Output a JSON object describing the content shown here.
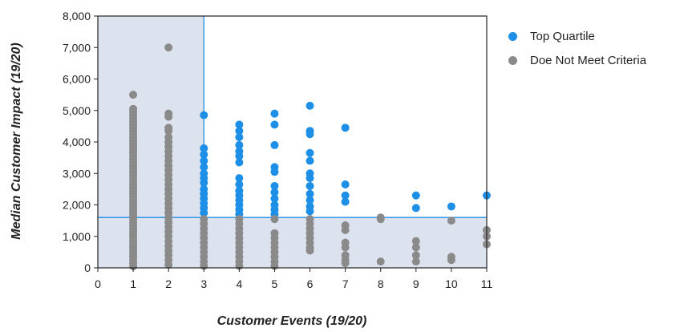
{
  "chart_data": {
    "type": "scatter",
    "xlabel": "Customer Events (19/20)",
    "ylabel": "Median Customer Impact (19/20)",
    "xlim": [
      0,
      11
    ],
    "ylim": [
      0,
      8000
    ],
    "x_ticks": [
      "0",
      "1",
      "2",
      "3",
      "4",
      "5",
      "6",
      "7",
      "8",
      "9",
      "10",
      "11"
    ],
    "y_ticks": [
      "0",
      "1,000",
      "2,000",
      "3,000",
      "4,000",
      "5,000",
      "6,000",
      "7,000",
      "8,000"
    ],
    "grid": false,
    "legend_position": "top-right",
    "threshold_lines": {
      "x": 3,
      "y": 1600
    },
    "colors": {
      "top_quartile": "#1e8fe6",
      "not_meet": "#8a8a8a",
      "shaded_region": "#dde3ee",
      "threshold_line": "#1e8fe6"
    },
    "series": [
      {
        "name": "Top Quartile",
        "points": [
          [
            3,
            4850
          ],
          [
            3,
            3800
          ],
          [
            3,
            3600
          ],
          [
            3,
            3400
          ],
          [
            3,
            3200
          ],
          [
            3,
            3000
          ],
          [
            3,
            2850
          ],
          [
            3,
            2700
          ],
          [
            3,
            2500
          ],
          [
            3,
            2350
          ],
          [
            3,
            2200
          ],
          [
            3,
            2050
          ],
          [
            3,
            1900
          ],
          [
            3,
            1750
          ],
          [
            4,
            4550
          ],
          [
            4,
            4350
          ],
          [
            4,
            4150
          ],
          [
            4,
            3900
          ],
          [
            4,
            3700
          ],
          [
            4,
            3550
          ],
          [
            4,
            3350
          ],
          [
            4,
            2850
          ],
          [
            4,
            2650
          ],
          [
            4,
            2450
          ],
          [
            4,
            2300
          ],
          [
            4,
            2150
          ],
          [
            4,
            2000
          ],
          [
            4,
            1850
          ],
          [
            4,
            1700
          ],
          [
            5,
            4900
          ],
          [
            5,
            4550
          ],
          [
            5,
            3900
          ],
          [
            5,
            3200
          ],
          [
            5,
            3050
          ],
          [
            5,
            2600
          ],
          [
            5,
            2400
          ],
          [
            5,
            2200
          ],
          [
            5,
            2000
          ],
          [
            5,
            1850
          ],
          [
            5,
            1700
          ],
          [
            6,
            5150
          ],
          [
            6,
            4350
          ],
          [
            6,
            4250
          ],
          [
            6,
            3650
          ],
          [
            6,
            3400
          ],
          [
            6,
            3000
          ],
          [
            6,
            2850
          ],
          [
            6,
            2600
          ],
          [
            6,
            2350
          ],
          [
            6,
            2150
          ],
          [
            6,
            1950
          ],
          [
            6,
            1800
          ],
          [
            7,
            4450
          ],
          [
            7,
            2650
          ],
          [
            7,
            2300
          ],
          [
            7,
            2100
          ],
          [
            9,
            2300
          ],
          [
            9,
            1900
          ],
          [
            10,
            1950
          ],
          [
            11,
            2300
          ]
        ]
      },
      {
        "name": "Doe Not Meet Criteria",
        "points": [
          [
            1,
            5500
          ],
          [
            1,
            5050
          ],
          [
            1,
            4950
          ],
          [
            1,
            4850
          ],
          [
            1,
            4750
          ],
          [
            1,
            4650
          ],
          [
            1,
            4550
          ],
          [
            1,
            4450
          ],
          [
            1,
            4350
          ],
          [
            1,
            4250
          ],
          [
            1,
            4150
          ],
          [
            1,
            4050
          ],
          [
            1,
            3950
          ],
          [
            1,
            3850
          ],
          [
            1,
            3750
          ],
          [
            1,
            3650
          ],
          [
            1,
            3550
          ],
          [
            1,
            3450
          ],
          [
            1,
            3350
          ],
          [
            1,
            3250
          ],
          [
            1,
            3150
          ],
          [
            1,
            3050
          ],
          [
            1,
            2950
          ],
          [
            1,
            2850
          ],
          [
            1,
            2750
          ],
          [
            1,
            2650
          ],
          [
            1,
            2550
          ],
          [
            1,
            2450
          ],
          [
            1,
            2350
          ],
          [
            1,
            2250
          ],
          [
            1,
            2150
          ],
          [
            1,
            2050
          ],
          [
            1,
            1950
          ],
          [
            1,
            1850
          ],
          [
            1,
            1750
          ],
          [
            1,
            1650
          ],
          [
            1,
            1550
          ],
          [
            1,
            1450
          ],
          [
            1,
            1350
          ],
          [
            1,
            1250
          ],
          [
            1,
            1150
          ],
          [
            1,
            1050
          ],
          [
            1,
            950
          ],
          [
            1,
            850
          ],
          [
            1,
            750
          ],
          [
            1,
            650
          ],
          [
            1,
            550
          ],
          [
            1,
            450
          ],
          [
            1,
            350
          ],
          [
            1,
            250
          ],
          [
            1,
            150
          ],
          [
            1,
            50
          ],
          [
            2,
            7000
          ],
          [
            2,
            4900
          ],
          [
            2,
            4800
          ],
          [
            2,
            4450
          ],
          [
            2,
            4350
          ],
          [
            2,
            4150
          ],
          [
            2,
            4000
          ],
          [
            2,
            3850
          ],
          [
            2,
            3700
          ],
          [
            2,
            3550
          ],
          [
            2,
            3400
          ],
          [
            2,
            3250
          ],
          [
            2,
            3100
          ],
          [
            2,
            2950
          ],
          [
            2,
            2800
          ],
          [
            2,
            2650
          ],
          [
            2,
            2500
          ],
          [
            2,
            2350
          ],
          [
            2,
            2200
          ],
          [
            2,
            2050
          ],
          [
            2,
            1900
          ],
          [
            2,
            1750
          ],
          [
            2,
            1600
          ],
          [
            2,
            1450
          ],
          [
            2,
            1300
          ],
          [
            2,
            1150
          ],
          [
            2,
            1000
          ],
          [
            2,
            850
          ],
          [
            2,
            700
          ],
          [
            2,
            550
          ],
          [
            2,
            400
          ],
          [
            2,
            250
          ],
          [
            2,
            100
          ],
          [
            3,
            1550
          ],
          [
            3,
            1400
          ],
          [
            3,
            1250
          ],
          [
            3,
            1100
          ],
          [
            3,
            950
          ],
          [
            3,
            800
          ],
          [
            3,
            650
          ],
          [
            3,
            500
          ],
          [
            3,
            350
          ],
          [
            3,
            200
          ],
          [
            3,
            60
          ],
          [
            4,
            1550
          ],
          [
            4,
            1400
          ],
          [
            4,
            1250
          ],
          [
            4,
            1100
          ],
          [
            4,
            950
          ],
          [
            4,
            800
          ],
          [
            4,
            650
          ],
          [
            4,
            500
          ],
          [
            4,
            350
          ],
          [
            4,
            200
          ],
          [
            4,
            60
          ],
          [
            5,
            1550
          ],
          [
            5,
            1100
          ],
          [
            5,
            950
          ],
          [
            5,
            800
          ],
          [
            5,
            650
          ],
          [
            5,
            500
          ],
          [
            5,
            350
          ],
          [
            5,
            200
          ],
          [
            5,
            60
          ],
          [
            6,
            1550
          ],
          [
            6,
            1400
          ],
          [
            6,
            1250
          ],
          [
            6,
            1100
          ],
          [
            6,
            950
          ],
          [
            6,
            800
          ],
          [
            6,
            650
          ],
          [
            6,
            550
          ],
          [
            7,
            1350
          ],
          [
            7,
            1200
          ],
          [
            7,
            800
          ],
          [
            7,
            650
          ],
          [
            7,
            400
          ],
          [
            7,
            250
          ],
          [
            7,
            150
          ],
          [
            8,
            1600
          ],
          [
            8,
            1550
          ],
          [
            8,
            200
          ],
          [
            9,
            850
          ],
          [
            9,
            650
          ],
          [
            9,
            400
          ],
          [
            9,
            200
          ],
          [
            10,
            1500
          ],
          [
            10,
            350
          ],
          [
            10,
            250
          ],
          [
            11,
            1200
          ],
          [
            11,
            1000
          ],
          [
            11,
            750
          ]
        ]
      }
    ]
  }
}
